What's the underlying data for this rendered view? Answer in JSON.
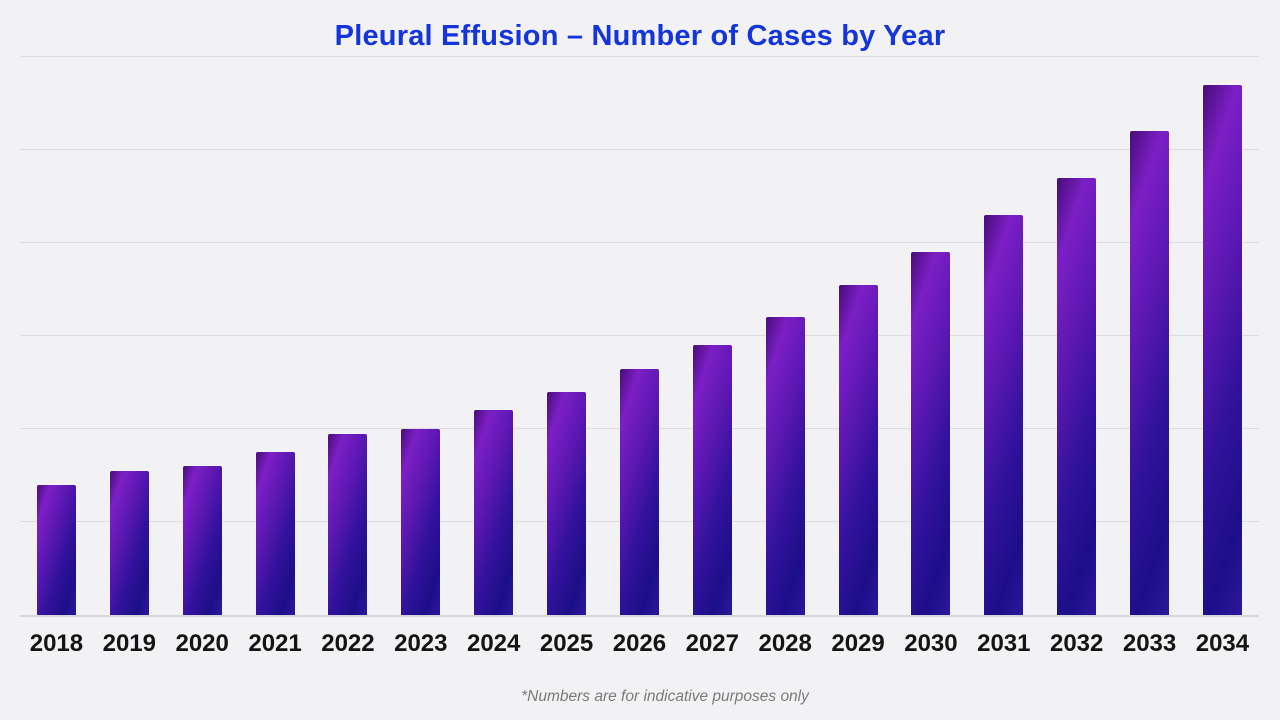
{
  "page": {
    "title": "Pleural Effusion – Number of Cases by Year",
    "footnote": "*Numbers are for indicative purposes only"
  },
  "colors": {
    "page_background": "#f2f1f3",
    "title_blue": "#1434dc",
    "gridline_gray": "#dcdbdf",
    "axis_gray": "#d6d5d9",
    "x_label_black": "#141414",
    "footnote_gray": "#7a7a7a",
    "bar_gradient": [
      "#470d78",
      "#7c1fc5",
      "#5c18b2",
      "#31129c",
      "#1e0e89",
      "#2b189b"
    ]
  },
  "chart_data": {
    "type": "bar",
    "title": "Pleural Effusion – Number of Cases by Year",
    "categories": [
      "2018",
      "2019",
      "2020",
      "2021",
      "2022",
      "2023",
      "2024",
      "2025",
      "2026",
      "2027",
      "2028",
      "2029",
      "2030",
      "2031",
      "2032",
      "2033",
      "2034"
    ],
    "values": [
      140,
      155,
      160,
      175,
      195,
      200,
      220,
      240,
      265,
      290,
      320,
      355,
      390,
      430,
      470,
      520,
      570
    ],
    "xlabel": "",
    "ylabel": "",
    "ylim": [
      0,
      600
    ],
    "gridline_interval": 100,
    "grid": true,
    "legend_position": "none",
    "y_axis_labels_visible": false,
    "annotation": "*Numbers are for indicative purposes only"
  }
}
